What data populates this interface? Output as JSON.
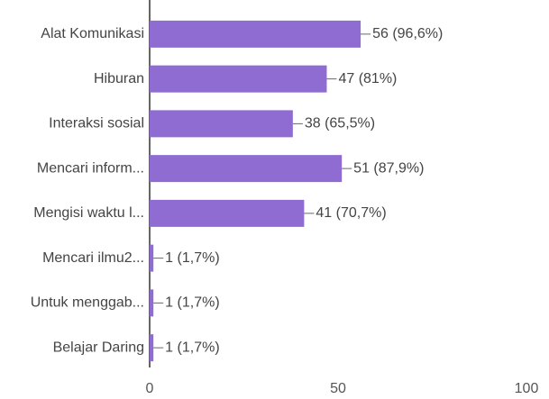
{
  "chart_data": {
    "type": "bar",
    "orientation": "horizontal",
    "categories": [
      "Alat Komunikasi",
      "Hiburan",
      "Interaksi sosial",
      "Mencari inform...",
      "Mengisi waktu l...",
      "Mencari ilmu2...",
      "Untuk menggab...",
      "Belajar Daring"
    ],
    "values": [
      56,
      47,
      38,
      51,
      41,
      1,
      1,
      1
    ],
    "value_labels": [
      "56 (96,6%)",
      "47 (81%)",
      "38 (65,5%)",
      "51 (87,9%)",
      "41 (70,7%)",
      "1 (1,7%)",
      "1 (1,7%)",
      "1 (1,7%)"
    ],
    "color": "#8e6cd1",
    "xlim": [
      0,
      100
    ],
    "xticks": [
      0,
      50,
      100
    ],
    "grid": false
  }
}
